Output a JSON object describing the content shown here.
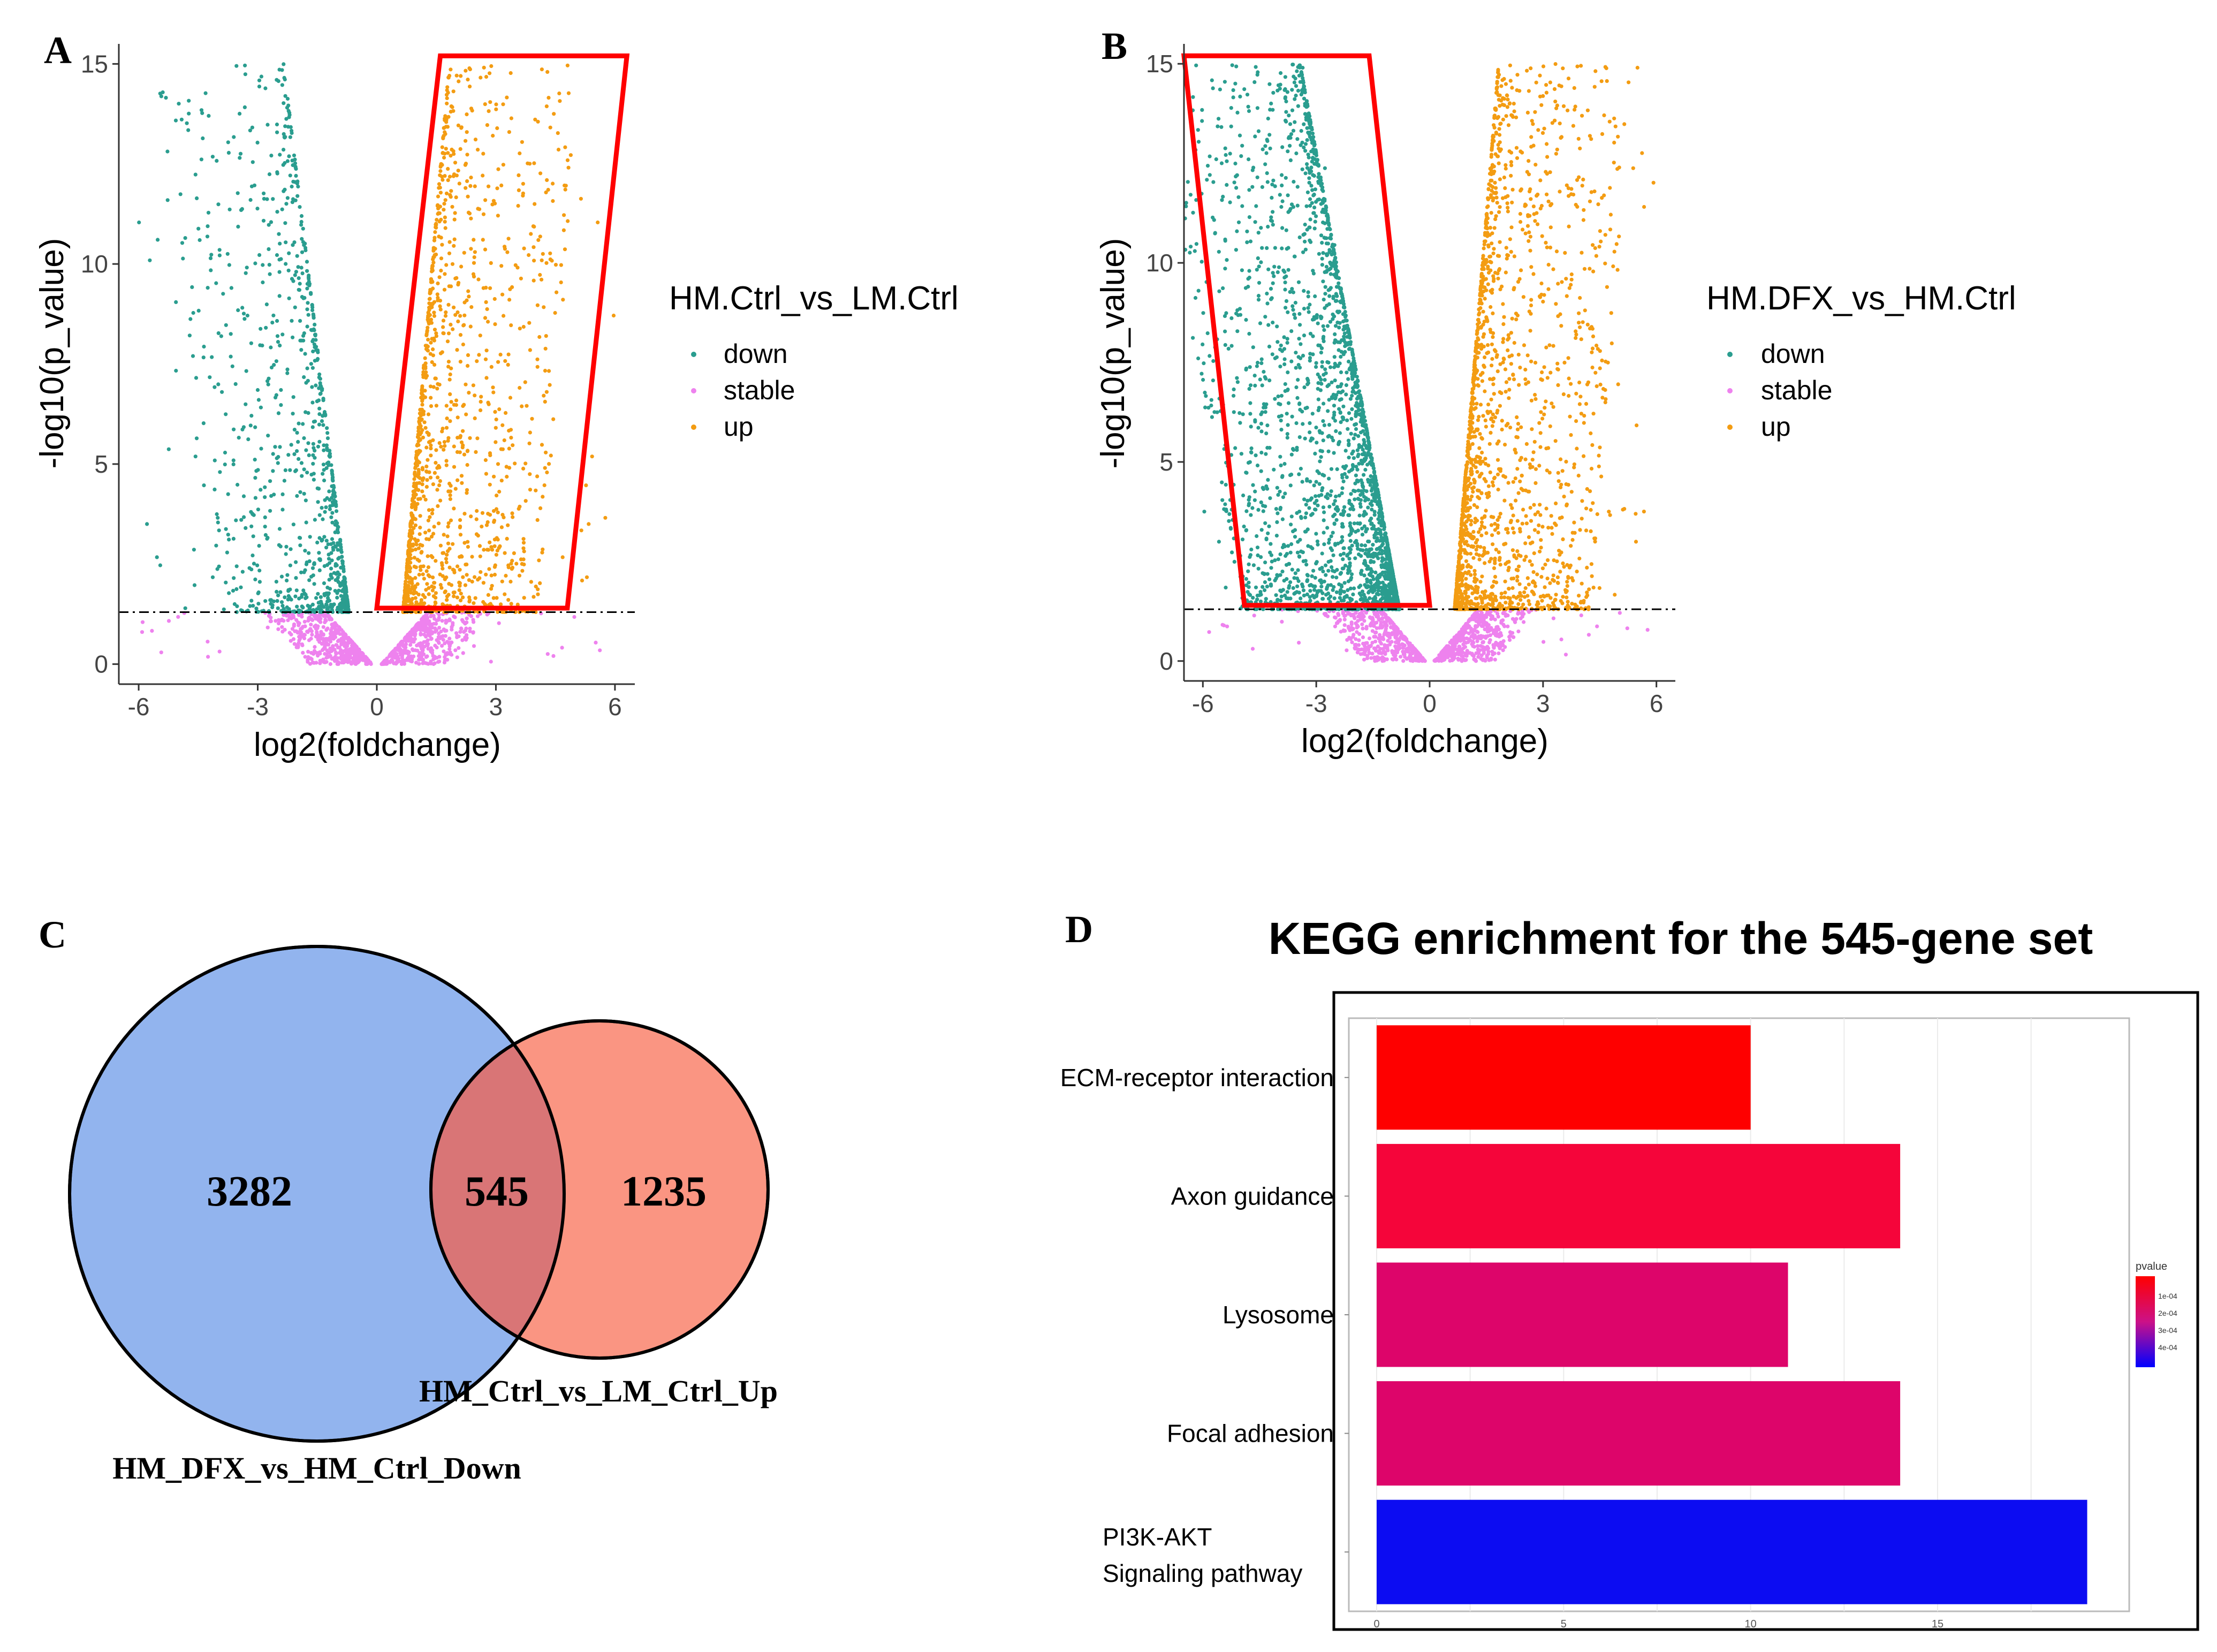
{
  "chart_data": [
    {
      "type": "scatter",
      "panel": "A",
      "xlabel": "log2(foldchange)",
      "ylabel": "-log10(p_value)",
      "xlim": [
        -6.5,
        6.5
      ],
      "ylim": [
        -0.5,
        15.5
      ],
      "xticks": [
        "-6",
        "-3",
        "0",
        "3",
        "6"
      ],
      "yticks": [
        "0",
        "5",
        "10",
        "15"
      ],
      "threshold_y": 1.3,
      "legend_title": "HM.Ctrl_vs_LM.Ctrl",
      "legend": [
        {
          "label": "down",
          "color": "#2a9d8f"
        },
        {
          "label": "stable",
          "color": "#ee82ee"
        },
        {
          "label": "up",
          "color": "#f39c12"
        }
      ],
      "highlight": "up",
      "highlight_polygon": [
        [
          1.6,
          15.2
        ],
        [
          6.3,
          15.2
        ],
        [
          4.8,
          1.4
        ],
        [
          0.0,
          1.4
        ]
      ]
    },
    {
      "type": "scatter",
      "panel": "B",
      "xlabel": "log2(foldchange)",
      "ylabel": "-log10(p_value)",
      "xlim": [
        -6.5,
        6.5
      ],
      "ylim": [
        -0.5,
        15.5
      ],
      "xticks": [
        "-6",
        "-3",
        "0",
        "3",
        "6"
      ],
      "yticks": [
        "0",
        "5",
        "10",
        "15"
      ],
      "threshold_y": 1.3,
      "legend_title": "HM.DFX_vs_HM.Ctrl",
      "legend": [
        {
          "label": "down",
          "color": "#2a9d8f"
        },
        {
          "label": "stable",
          "color": "#ee82ee"
        },
        {
          "label": "up",
          "color": "#f39c12"
        }
      ],
      "highlight": "down",
      "highlight_polygon": [
        [
          -6.5,
          15.2
        ],
        [
          -1.6,
          15.2
        ],
        [
          0.0,
          1.4
        ],
        [
          -4.9,
          1.4
        ]
      ]
    },
    {
      "type": "venn",
      "panel": "C",
      "sets": [
        {
          "name": "HM_DFX_vs_HM_Ctrl_Down",
          "only": 3282,
          "color": "#6e9be8"
        },
        {
          "name": "HM_Ctrl_vs_LM_Ctrl_Up",
          "only": 1235,
          "color": "#f97a63"
        }
      ],
      "intersection": 545
    },
    {
      "type": "bar",
      "panel": "D",
      "title": "KEGG enrichment for the 545-gene set",
      "orientation": "horizontal",
      "categories": [
        "ECM-receptor interaction",
        "Axon guidance",
        "Lysosome",
        "Focal adhesion",
        "PI3K-AKT Signaling pathway"
      ],
      "category_lines": [
        [
          "ECM-receptor interaction"
        ],
        [
          "Axon guidance"
        ],
        [
          "Lysosome"
        ],
        [
          "Focal adhesion"
        ],
        [
          "PI3K-AKT",
          "Signaling pathway"
        ]
      ],
      "values": [
        10,
        14,
        11,
        14,
        19
      ],
      "pvalues": [
        2e-05,
        5e-05,
        0.00012,
        0.00012,
        0.00048
      ],
      "colors": [
        "#fe0000",
        "#f5053a",
        "#dd056a",
        "#dd056a",
        "#0c0cf2"
      ],
      "xlim": [
        0,
        20
      ],
      "xticks": [
        "0",
        "5",
        "10",
        "15"
      ],
      "legend_title": "pvalue",
      "legend_ticks": [
        "1e-04",
        "2e-04",
        "3e-04",
        "4e-04"
      ]
    }
  ],
  "labels": {
    "A": "A",
    "B": "B",
    "C": "C",
    "D": "D"
  }
}
